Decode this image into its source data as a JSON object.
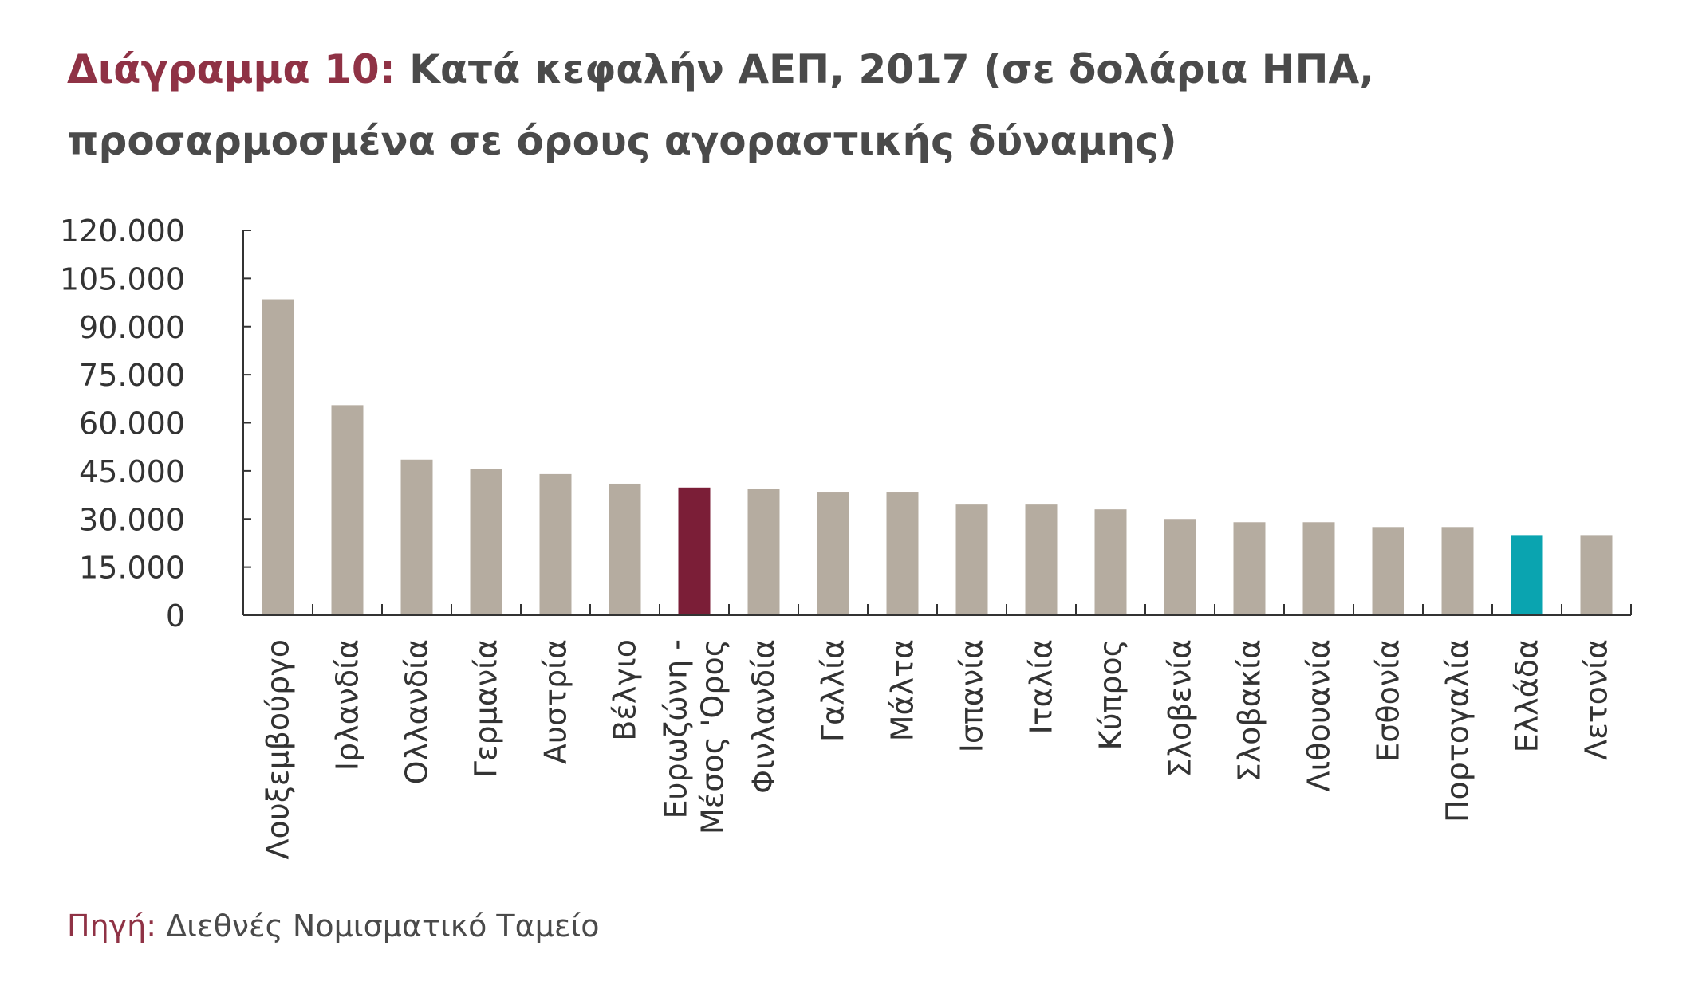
{
  "title": {
    "prefix": "Διάγραμμα 10:",
    "text": "Κατά κεφαλήν ΑΕΠ, 2017 (σε δολάρια ΗΠΑ, προσαρμοσμένα σε όρους αγοραστικής δύναμης)"
  },
  "source": {
    "prefix": "Πηγή:",
    "text": "Διεθνές Νομισματικό Ταμείο"
  },
  "colors": {
    "default_bar": "#b5aca0",
    "eurozone_bar": "#7b1e37",
    "greece_bar": "#0aa4b0",
    "axis": "#333333",
    "text": "#333333"
  },
  "chart_data": {
    "type": "bar",
    "categories": [
      [
        "Λουξεμβούργο"
      ],
      [
        "Ιρλανδία"
      ],
      [
        "Ολλανδία"
      ],
      [
        "Γερμανία"
      ],
      [
        "Αυστρία"
      ],
      [
        "Βέλγιο"
      ],
      [
        "Ευρωζώνη -",
        "Μέσος 'Ορος"
      ],
      [
        "Φινλανδία"
      ],
      [
        "Γαλλία"
      ],
      [
        "Μάλτα"
      ],
      [
        "Ισπανία"
      ],
      [
        "Ιταλία"
      ],
      [
        "Κύπρος"
      ],
      [
        "Σλοβενία"
      ],
      [
        "Σλοβακία"
      ],
      [
        "Λιθουανία"
      ],
      [
        "Εσθονία"
      ],
      [
        "Πορτογαλία"
      ],
      [
        "Ελλάδα"
      ],
      [
        "Λετονία"
      ]
    ],
    "values": [
      98500,
      65500,
      48500,
      45500,
      44000,
      41000,
      39800,
      39500,
      38500,
      38500,
      34500,
      34500,
      33000,
      30000,
      29000,
      29000,
      27500,
      27500,
      25000,
      25000
    ],
    "highlights": {
      "6": "eurozone_bar",
      "18": "greece_bar"
    },
    "yticks": [
      "0",
      "15.000",
      "30.000",
      "45.000",
      "60.000",
      "75.000",
      "90.000",
      "105.000",
      "120.000"
    ],
    "ylim": [
      0,
      120000
    ],
    "xlabel": "",
    "ylabel": "",
    "grid": false,
    "legend": "none"
  }
}
